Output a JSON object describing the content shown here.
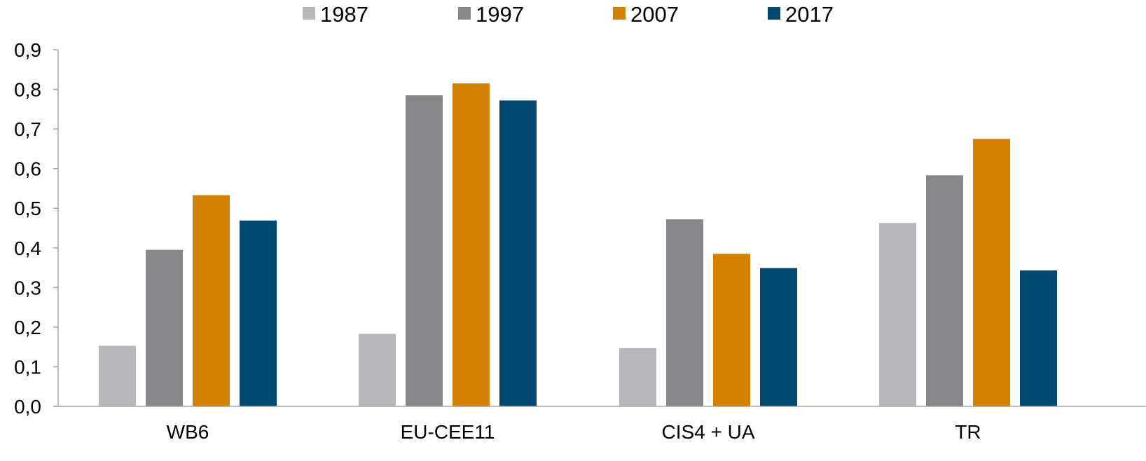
{
  "chart_data": {
    "type": "bar",
    "title": "",
    "xlabel": "",
    "ylabel": "",
    "categories": [
      "WB6",
      "EU-CEE11",
      "CIS4 + UA",
      "TR"
    ],
    "series": [
      {
        "name": "1987",
        "color": "#b8b8bc",
        "values": [
          0.153,
          0.183,
          0.147,
          0.463
        ]
      },
      {
        "name": "1997",
        "color": "#87868b",
        "values": [
          0.395,
          0.785,
          0.472,
          0.583
        ]
      },
      {
        "name": "2007",
        "color": "#d28200",
        "values": [
          0.533,
          0.815,
          0.385,
          0.675
        ]
      },
      {
        "name": "2017",
        "color": "#00486f",
        "values": [
          0.469,
          0.772,
          0.349,
          0.343
        ]
      }
    ],
    "ylim": [
      0,
      0.9
    ],
    "y_ticks": [
      "0,0",
      "0,1",
      "0,2",
      "0,3",
      "0,4",
      "0,5",
      "0,6",
      "0,7",
      "0,8",
      "0,9"
    ],
    "grid": false,
    "legend_position": "top-center"
  }
}
